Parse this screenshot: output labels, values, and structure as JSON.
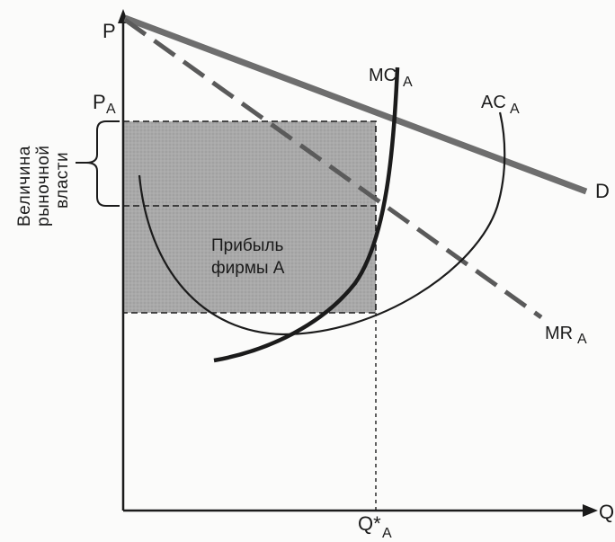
{
  "axes": {
    "y_label": "P",
    "x_label": "Q"
  },
  "price": {
    "label": "P",
    "subscript": "A"
  },
  "quantity": {
    "label": "Q*",
    "subscript": "A"
  },
  "curves": {
    "demand": "D",
    "mc": {
      "label": "MC",
      "subscript": "A"
    },
    "ac": {
      "label": "AC",
      "subscript": "A"
    },
    "mr": {
      "label": "MR",
      "subscript": "A"
    }
  },
  "profit_area": {
    "line1": "Прибыль",
    "line2": "фирмы А"
  },
  "market_power": {
    "line1": "Величина",
    "line2": "рыночной",
    "line3": "власти"
  },
  "colors": {
    "profit_fill": "#a9a9a9",
    "ink": "#1b1b1b",
    "demand": "#6e6e6e"
  }
}
